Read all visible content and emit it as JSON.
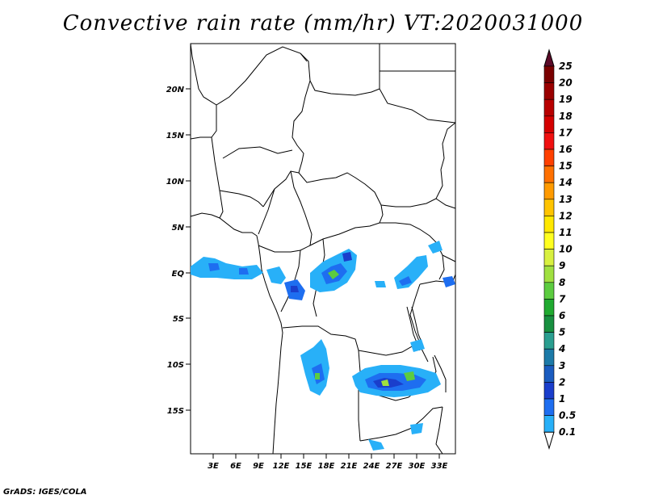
{
  "title": "Convective rain rate (mm/hr) VT:2020031000",
  "credit": "GrADS: IGES/COLA",
  "lat_labels": [
    "20N",
    "15N",
    "10N",
    "5N",
    "EQ",
    "5S",
    "10S",
    "15S"
  ],
  "lon_labels": [
    "3E",
    "6E",
    "9E",
    "12E",
    "15E",
    "18E",
    "21E",
    "24E",
    "27E",
    "30E",
    "33E"
  ],
  "colorbar": {
    "labels": [
      "25",
      "20",
      "19",
      "18",
      "17",
      "16",
      "15",
      "14",
      "13",
      "12",
      "11",
      "10",
      "9",
      "8",
      "7",
      "6",
      "5",
      "4",
      "3",
      "2",
      "1",
      "0.5",
      "0.1"
    ],
    "colors": [
      "#5b0a28",
      "#7a0000",
      "#9a0000",
      "#b80000",
      "#d40000",
      "#f01010",
      "#ff4000",
      "#ff7000",
      "#ff9a00",
      "#ffc400",
      "#ffe800",
      "#ffff20",
      "#d8f040",
      "#a0e040",
      "#5ccc40",
      "#20aa30",
      "#189040",
      "#2a9e90",
      "#1c7aa8",
      "#1a5cc0",
      "#1a3ecc",
      "#1e6ef0",
      "#28b0f8",
      "#ffffff"
    ]
  },
  "map": {
    "lon_range": [
      0,
      35
    ],
    "lat_range": [
      -20,
      25
    ]
  }
}
